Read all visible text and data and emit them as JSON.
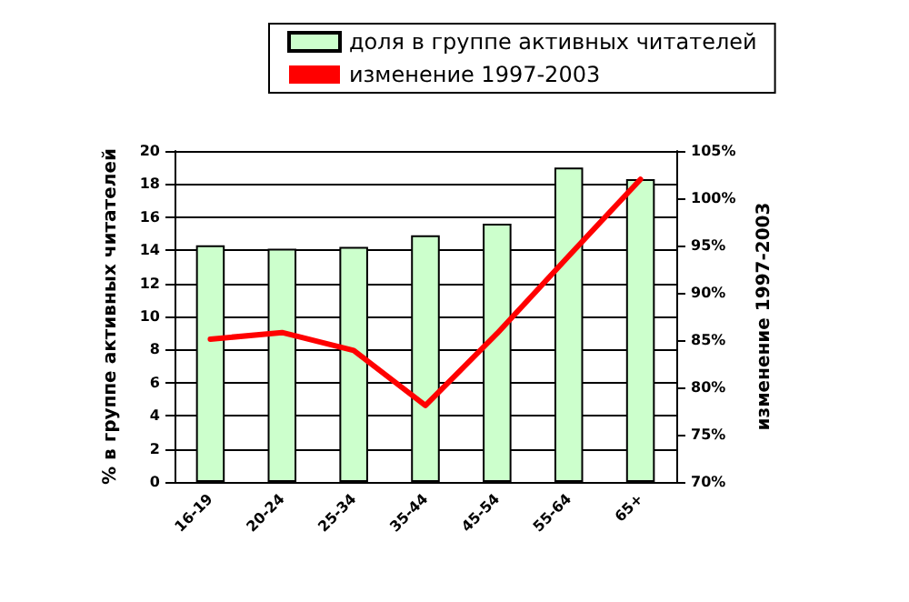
{
  "chart_data": {
    "type": "bar",
    "categories": [
      "16-19",
      "20-24",
      "25-34",
      "35-44",
      "45-54",
      "55-64",
      "65+"
    ],
    "series": [
      {
        "name": "доля в группе активных читателей",
        "color": "#ccffcc",
        "values": [
          14.3,
          14.1,
          14.2,
          14.9,
          15.6,
          19.0,
          18.3
        ]
      },
      {
        "name": "изменение 1997-2003",
        "type": "line",
        "axis": "y2",
        "color": "#ff0000",
        "values": [
          85.1,
          85.8,
          83.9,
          78.1,
          85.7,
          93.9,
          102
        ]
      }
    ],
    "ylabel": "% в группе активных читателей",
    "y2label": "изменение 1997-2003",
    "ylim": [
      0,
      20
    ],
    "yticks": [
      0,
      2,
      4,
      6,
      8,
      10,
      12,
      14,
      16,
      18,
      20
    ],
    "y2lim": [
      70,
      105
    ],
    "y2ticks": [
      {
        "value": 70,
        "label": "70%"
      },
      {
        "value": 75,
        "label": "75%"
      },
      {
        "value": 80,
        "label": "80%"
      },
      {
        "value": 85,
        "label": "85%"
      },
      {
        "value": 90,
        "label": "90%"
      },
      {
        "value": 95,
        "label": "95%"
      },
      {
        "value": 100,
        "label": "100%"
      },
      {
        "value": 105,
        "label": "105%"
      }
    ],
    "grid": "y",
    "legend": "top",
    "marker": "none"
  }
}
